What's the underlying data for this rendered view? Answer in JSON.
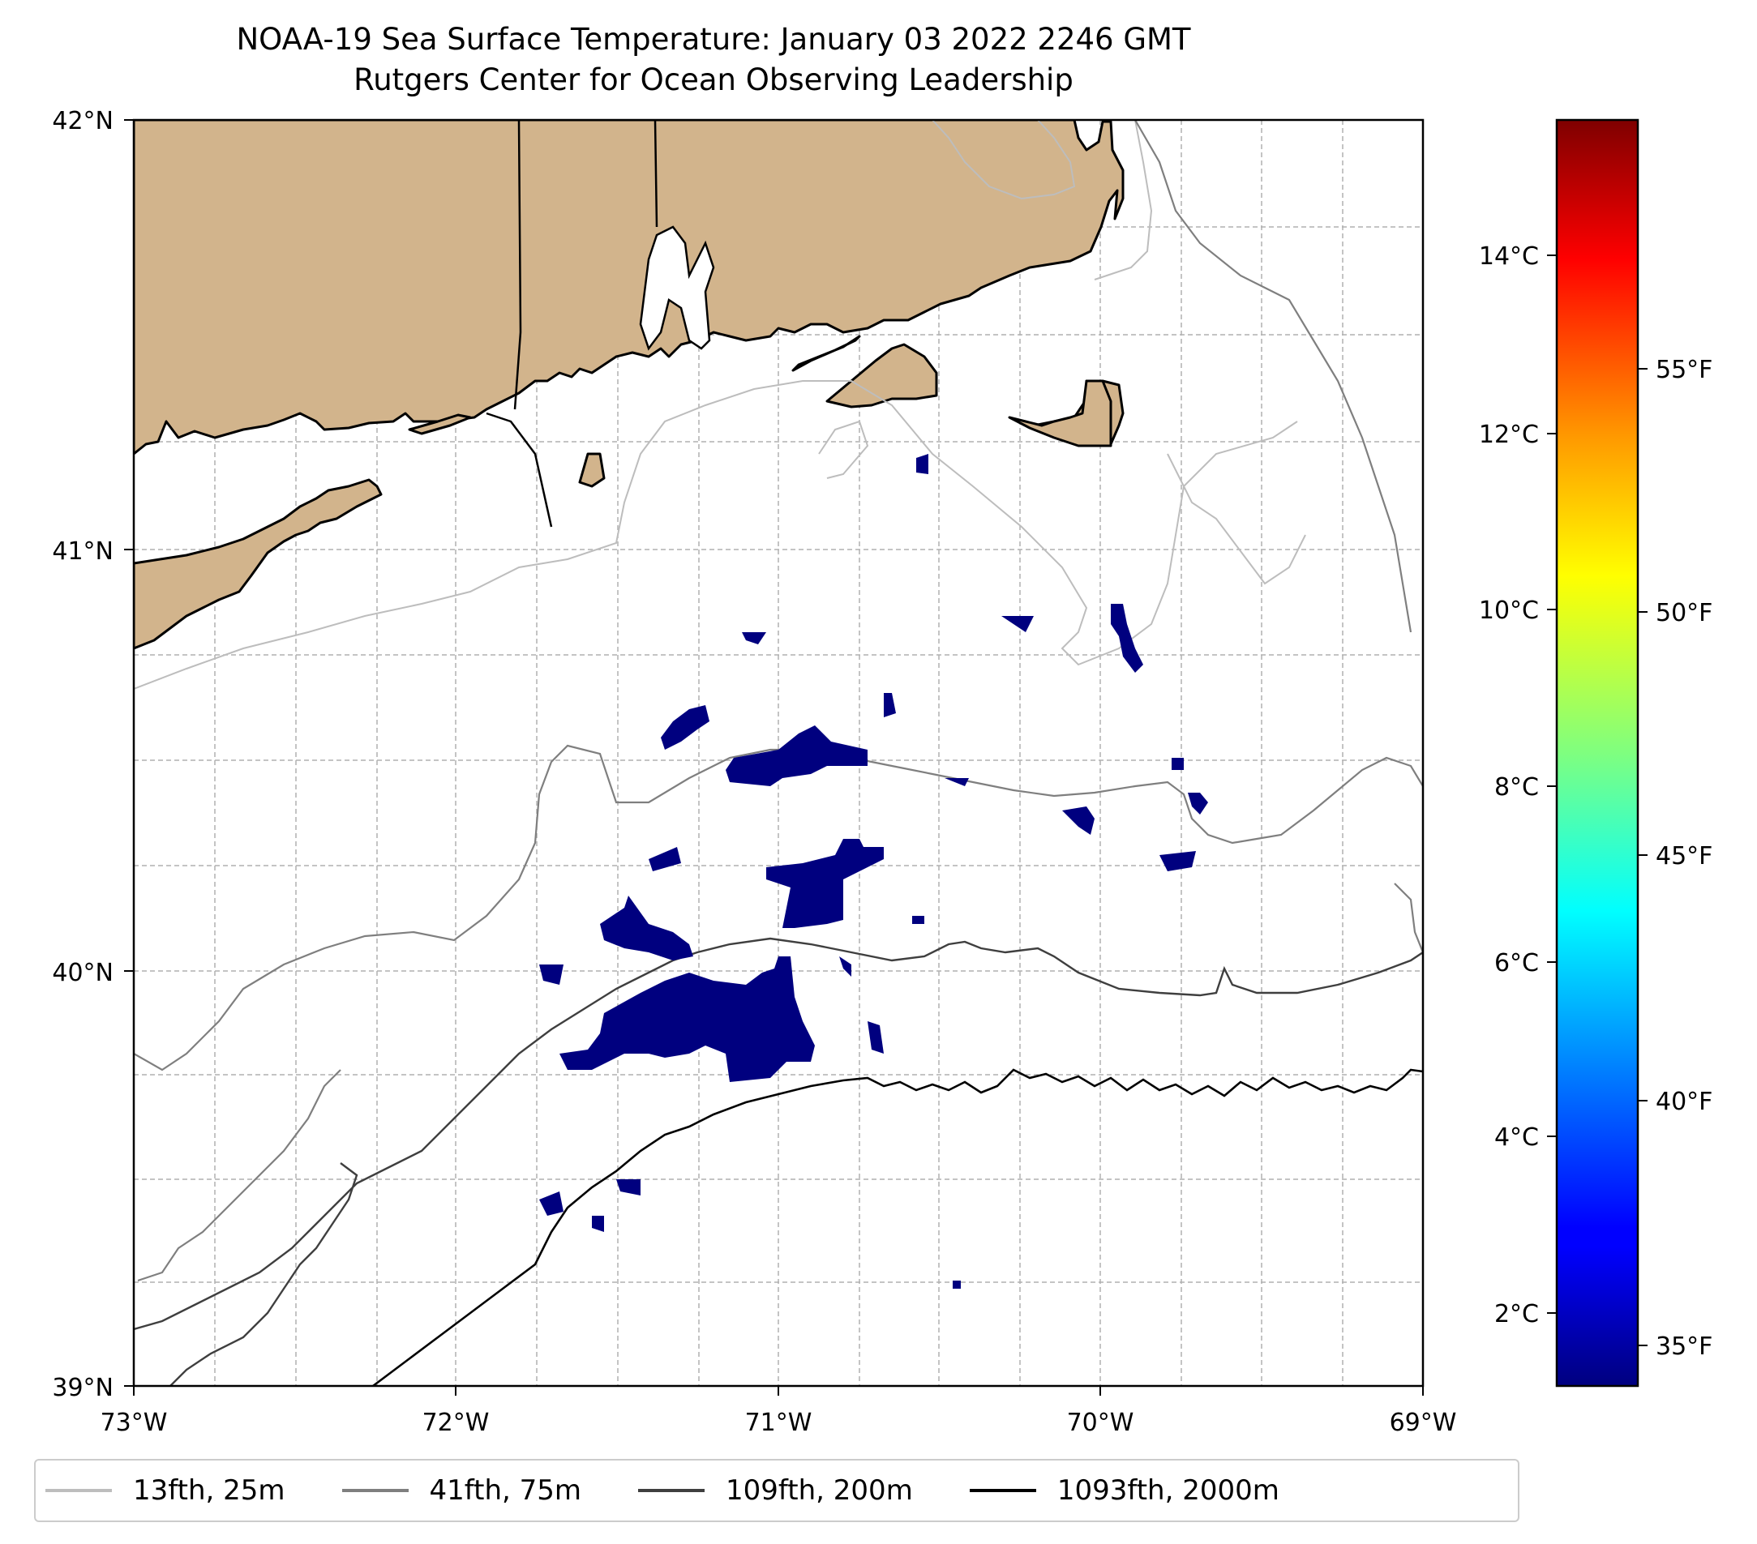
{
  "title": {
    "line1": "NOAA-19 Sea Surface Temperature: January 03 2022 2246 GMT",
    "line2": "Rutgers Center for Ocean Observing Leadership"
  },
  "map": {
    "lat_labels": [
      "42°N",
      "41°N",
      "40°N",
      "39°N"
    ],
    "lon_labels": [
      "73°W",
      "72°W",
      "71°W",
      "70°W",
      "69°W"
    ],
    "lat_range": [
      39,
      42
    ],
    "lon_range": [
      -73,
      -69
    ]
  },
  "colorbar": {
    "celsius_labels": [
      "14°C",
      "12°C",
      "10°C",
      "8°C",
      "6°C",
      "4°C",
      "2°C"
    ],
    "fahrenheit_labels": [
      "55°F",
      "50°F",
      "45°F",
      "40°F",
      "35°F"
    ],
    "range_c": [
      1.3,
      15.7
    ]
  },
  "legend": [
    {
      "label": "13fth, 25m",
      "color": "#bdbdbd"
    },
    {
      "label": "41fth, 75m",
      "color": "#7f7f7f"
    },
    {
      "label": "109fth, 200m",
      "color": "#3f3f3f"
    },
    {
      "label": "1093fth, 2000m",
      "color": "#000000"
    }
  ],
  "colors": {
    "land": "#d2b48c",
    "cold_sst": "#00007f",
    "grid": "#b0b0b0"
  }
}
